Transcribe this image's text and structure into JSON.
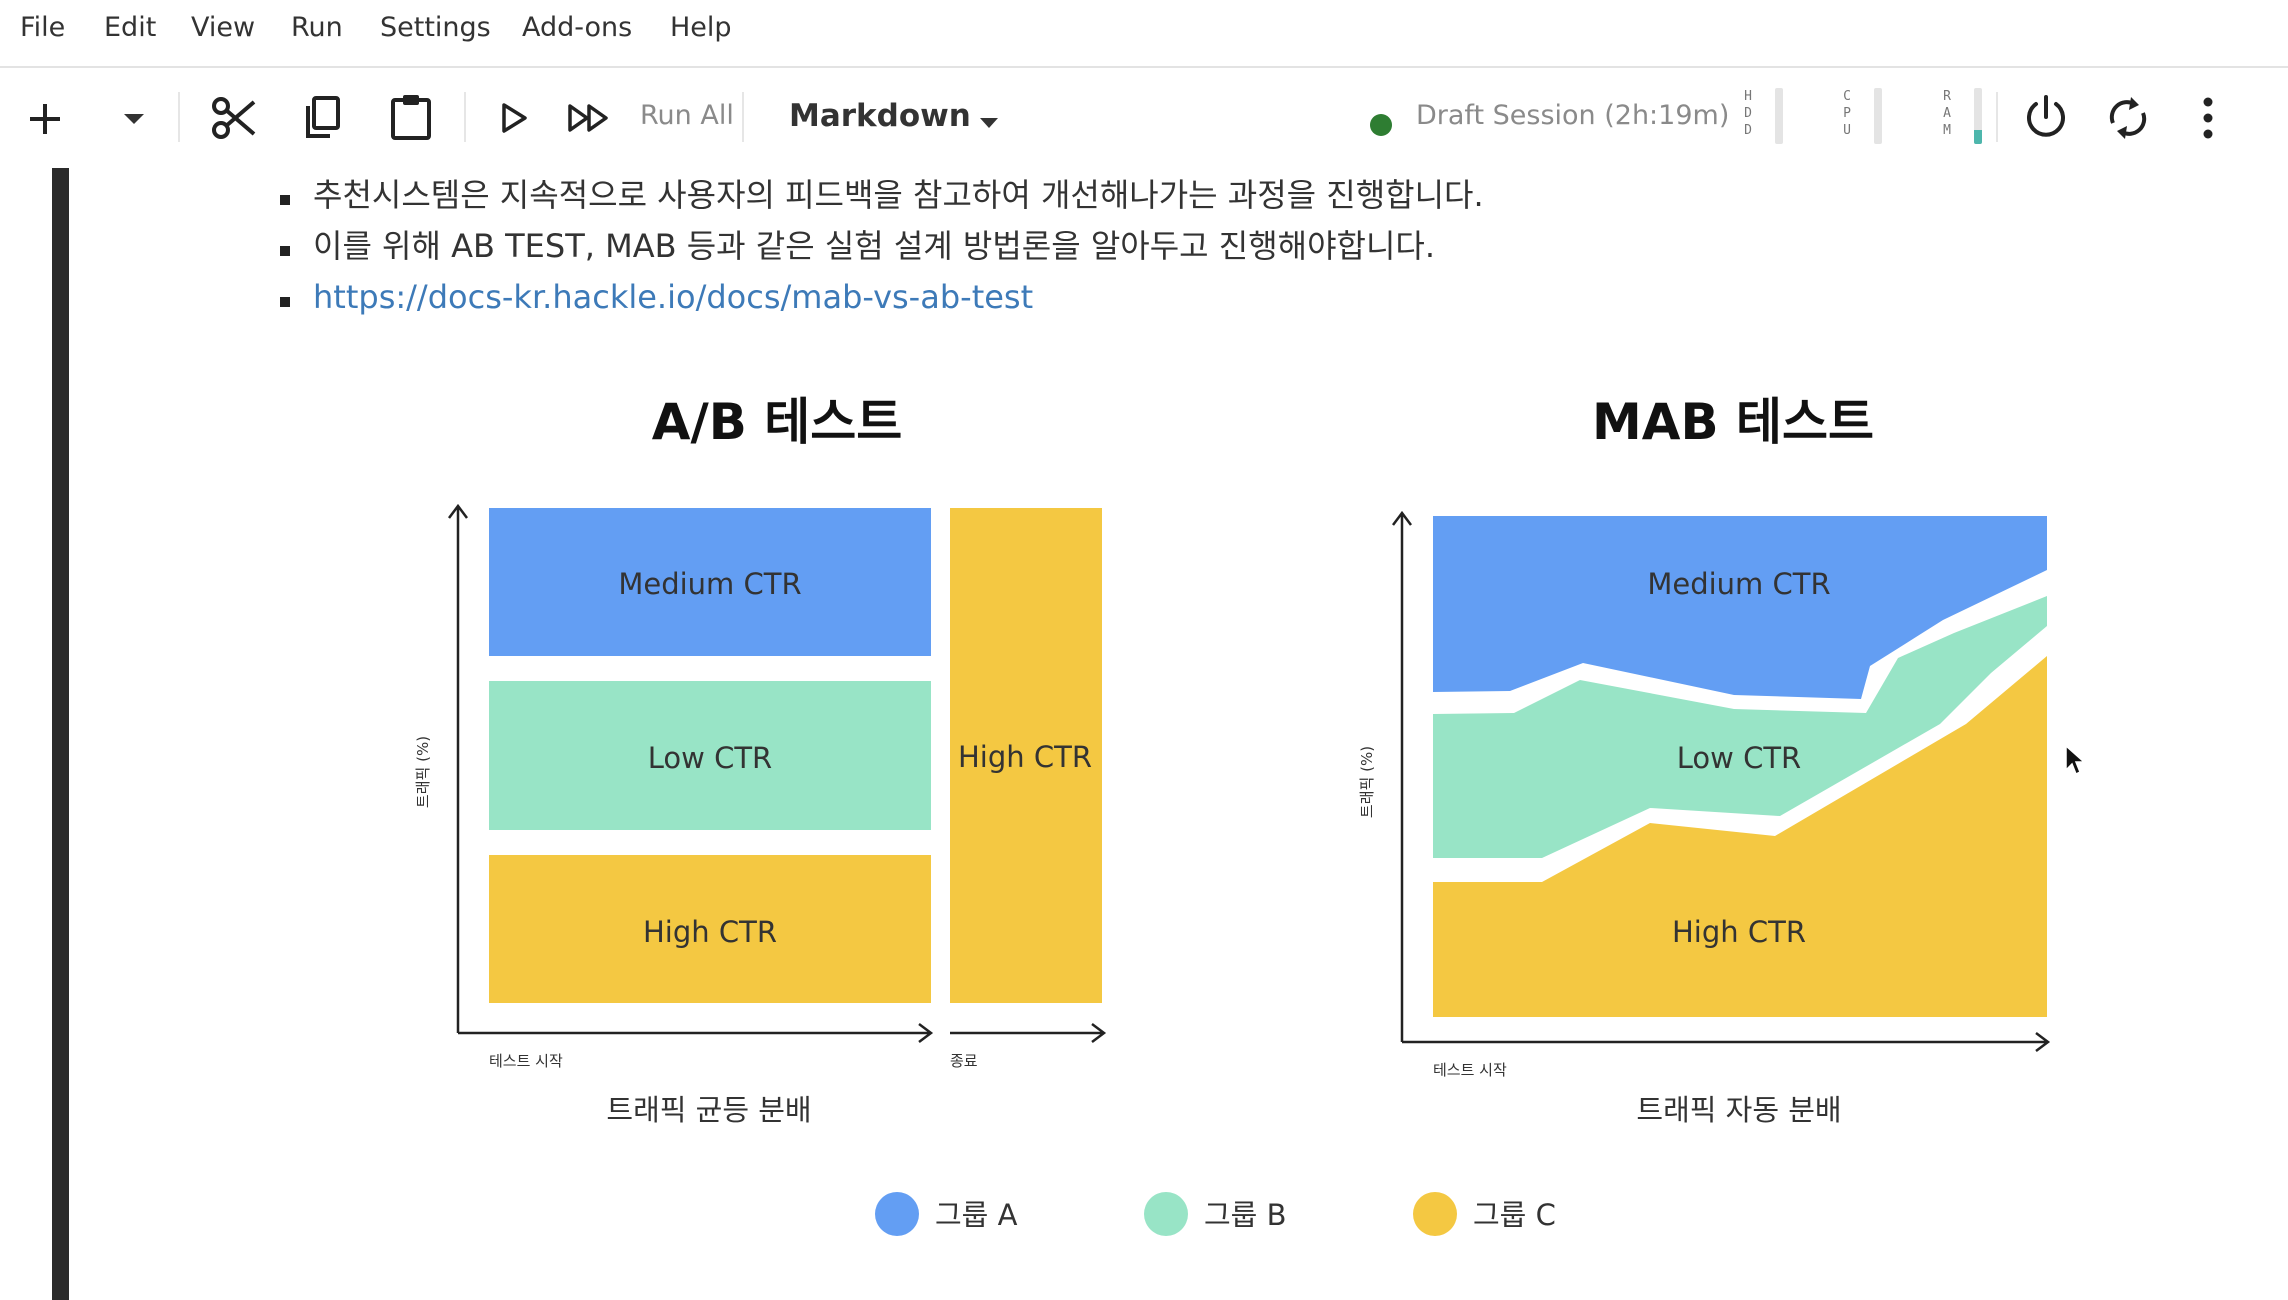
{
  "menu": [
    "File",
    "Edit",
    "View",
    "Run",
    "Settings",
    "Add-ons",
    "Help"
  ],
  "toolbar": {
    "run_all_label": "Run All",
    "cell_type": "Markdown",
    "session_label": "Draft Session (2h:19m)",
    "session_status_color": "#2e7d32",
    "meters": [
      {
        "label": "HDD",
        "level": 0.0
      },
      {
        "label": "CPU",
        "level": 0.0
      },
      {
        "label": "RAM",
        "level": 0.25
      }
    ]
  },
  "content": {
    "bullets": [
      "추천시스템은 지속적으로 사용자의 피드백을 참고하여 개선해나가는 과정을 진행합니다.",
      "이를 위해 AB TEST, MAB 등과 같은 실험 설계 방법론을 알아두고 진행해야합니다."
    ],
    "link": "https://docs-kr.hackle.io/docs/mab-vs-ab-test"
  },
  "figure": {
    "colors": {
      "group_a": "#639ef3",
      "group_b": "#98e4c6",
      "group_c": "#f4c842"
    },
    "ab": {
      "title": "A/B 테스트",
      "ylabel": "트래픽 (%)",
      "start_label": "테스트 시작",
      "end_label": "종료",
      "caption": "트래픽 균등 분배",
      "segments": [
        "Medium CTR",
        "Low CTR",
        "High CTR"
      ],
      "after_label": "High CTR"
    },
    "mab": {
      "title": "MAB 테스트",
      "ylabel": "트래픽 (%)",
      "start_label": "테스트 시작",
      "caption": "트래픽 자동 분배",
      "segments": [
        "Medium CTR",
        "Low CTR",
        "High CTR"
      ]
    },
    "legend": [
      "그룹 A",
      "그룹 B",
      "그룹 C"
    ]
  }
}
